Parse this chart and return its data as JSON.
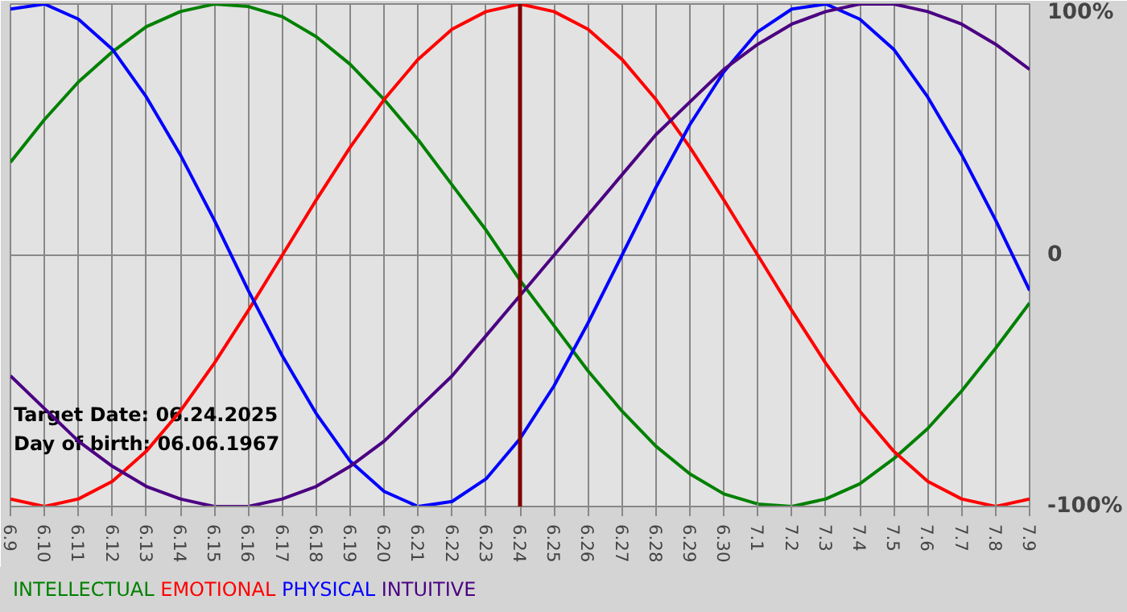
{
  "chart_data": {
    "type": "line",
    "categories": [
      "6.9",
      "6.10",
      "6.11",
      "6.12",
      "6.13",
      "6.14",
      "6.15",
      "6.16",
      "6.17",
      "6.18",
      "6.19",
      "6.20",
      "6.21",
      "6.22",
      "6.23",
      "6.24",
      "6.25",
      "6.26",
      "6.27",
      "6.28",
      "6.29",
      "6.30",
      "7.1",
      "7.2",
      "7.3",
      "7.4",
      "7.5",
      "7.6",
      "7.7",
      "7.8",
      "7.9"
    ],
    "series": [
      {
        "name": "INTELLECTUAL",
        "color": "#008000",
        "values": [
          37,
          54,
          69,
          81,
          91,
          97,
          100,
          99,
          95,
          87,
          76,
          62,
          46,
          28,
          10,
          -10,
          -28,
          -46,
          -62,
          -76,
          -87,
          -95,
          -99,
          -100,
          -97,
          -91,
          -81,
          -69,
          -54,
          -37,
          -19
        ]
      },
      {
        "name": "EMOTIONAL",
        "color": "#ff0000",
        "values": [
          -97,
          -100,
          -97,
          -90,
          -78,
          -62,
          -43,
          -22,
          0,
          22,
          43,
          62,
          78,
          90,
          97,
          100,
          97,
          90,
          78,
          62,
          43,
          22,
          0,
          -22,
          -43,
          -62,
          -78,
          -90,
          -97,
          -100,
          -97
        ]
      },
      {
        "name": "PHYSICAL",
        "color": "#0000ff",
        "values": [
          98,
          100,
          94,
          82,
          63,
          40,
          14,
          -14,
          -40,
          -63,
          -82,
          -94,
          -100,
          -98,
          -89,
          -73,
          -52,
          -27,
          0,
          27,
          52,
          73,
          89,
          98,
          100,
          94,
          82,
          63,
          40,
          14,
          -14
        ]
      },
      {
        "name": "INTUITIVE",
        "color": "#4b0082",
        "values": [
          -48,
          -61,
          -74,
          -84,
          -92,
          -97,
          -100,
          -100,
          -97,
          -92,
          -84,
          -74,
          -61,
          -48,
          -32,
          -16,
          0,
          16,
          32,
          48,
          61,
          74,
          84,
          92,
          97,
          100,
          100,
          97,
          92,
          84,
          74
        ]
      }
    ],
    "ylim": [
      -100,
      100
    ],
    "yticks": [
      {
        "value": 100,
        "label": "100%"
      },
      0,
      {
        "value": -100,
        "label": "-100%"
      }
    ],
    "grid": true,
    "ref_lines": [
      {
        "axis": "x",
        "value": "6.24",
        "color": "#800000"
      }
    ],
    "annotations": [
      "Target Date: 06.24.2025",
      "Day of birth: 06.06.1967"
    ]
  }
}
